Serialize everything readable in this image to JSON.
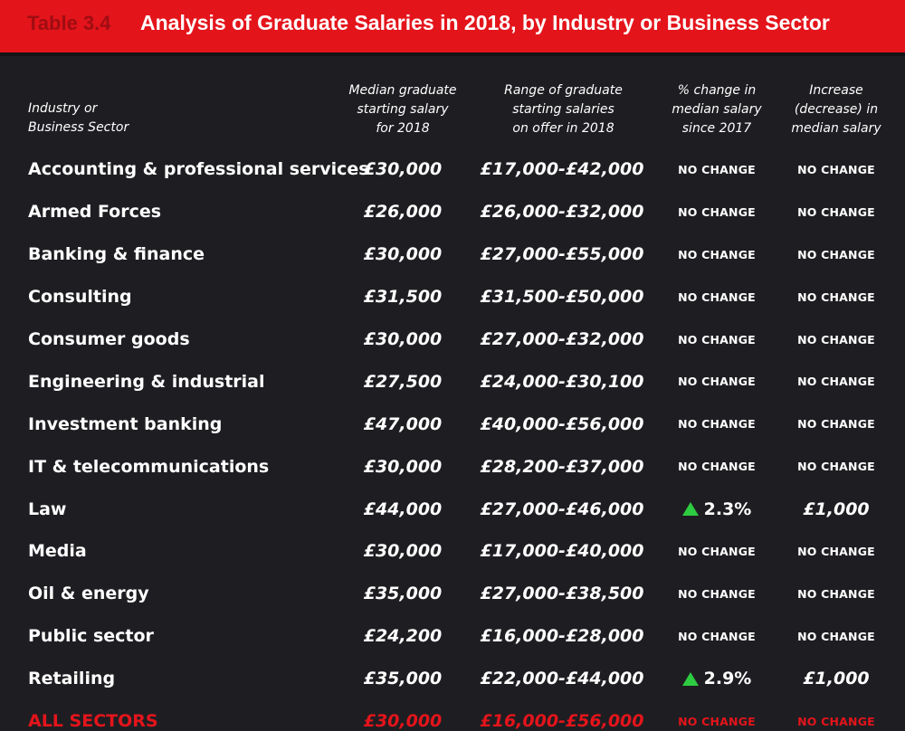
{
  "title": {
    "table_number": "Table 3.4",
    "text": "Analysis of Graduate Salaries in 2018, by Industry or Business Sector"
  },
  "headers": {
    "industry": [
      "Industry or",
      "Business Sector"
    ],
    "median": [
      "Median graduate",
      "starting salary",
      "for 2018"
    ],
    "range": [
      "Range of graduate",
      "starting salaries",
      "on offer in 2018"
    ],
    "pct_change": [
      "% change in",
      "median salary",
      "since 2017"
    ],
    "increase": [
      "Increase",
      "(decrease) in",
      "median salary"
    ]
  },
  "rows": [
    {
      "sector": "Accounting & professional services",
      "median": "£30,000",
      "range": "£17,000-£42,000",
      "pct": "NO CHANGE",
      "increase": "NO CHANGE",
      "up": false
    },
    {
      "sector": "Armed Forces",
      "median": "£26,000",
      "range": "£26,000-£32,000",
      "pct": "NO CHANGE",
      "increase": "NO CHANGE",
      "up": false
    },
    {
      "sector": "Banking & finance",
      "median": "£30,000",
      "range": "£27,000-£55,000",
      "pct": "NO CHANGE",
      "increase": "NO CHANGE",
      "up": false
    },
    {
      "sector": "Consulting",
      "median": "£31,500",
      "range": "£31,500-£50,000",
      "pct": "NO CHANGE",
      "increase": "NO CHANGE",
      "up": false
    },
    {
      "sector": "Consumer goods",
      "median": "£30,000",
      "range": "£27,000-£32,000",
      "pct": "NO CHANGE",
      "increase": "NO CHANGE",
      "up": false
    },
    {
      "sector": "Engineering & industrial",
      "median": "£27,500",
      "range": "£24,000-£30,100",
      "pct": "NO CHANGE",
      "increase": "NO CHANGE",
      "up": false
    },
    {
      "sector": "Investment banking",
      "median": "£47,000",
      "range": "£40,000-£56,000",
      "pct": "NO CHANGE",
      "increase": "NO CHANGE",
      "up": false
    },
    {
      "sector": "IT & telecommunications",
      "median": "£30,000",
      "range": "£28,200-£37,000",
      "pct": "NO CHANGE",
      "increase": "NO CHANGE",
      "up": false
    },
    {
      "sector": "Law",
      "median": "£44,000",
      "range": "£27,000-£46,000",
      "pct": "2.3%",
      "increase": "£1,000",
      "up": true
    },
    {
      "sector": "Media",
      "median": "£30,000",
      "range": "£17,000-£40,000",
      "pct": "NO CHANGE",
      "increase": "NO CHANGE",
      "up": false
    },
    {
      "sector": "Oil & energy",
      "median": "£35,000",
      "range": "£27,000-£38,500",
      "pct": "NO CHANGE",
      "increase": "NO CHANGE",
      "up": false
    },
    {
      "sector": "Public sector",
      "median": "£24,200",
      "range": "£16,000-£28,000",
      "pct": "NO CHANGE",
      "increase": "NO CHANGE",
      "up": false
    },
    {
      "sector": "Retailing",
      "median": "£35,000",
      "range": "£22,000-£44,000",
      "pct": "2.9%",
      "increase": "£1,000",
      "up": true
    }
  ],
  "all_sectors": {
    "sector": "ALL SECTORS",
    "median": "£30,000",
    "range": "£16,000-£56,000",
    "pct": "NO CHANGE",
    "increase": "NO CHANGE"
  },
  "colors": {
    "title_bar": "#e4141b",
    "background": "#1e1e22",
    "up_arrow": "#2ecc40",
    "all_sectors_text": "#e4141b"
  },
  "icons": {
    "increase_marker": "triangle-up-icon"
  }
}
